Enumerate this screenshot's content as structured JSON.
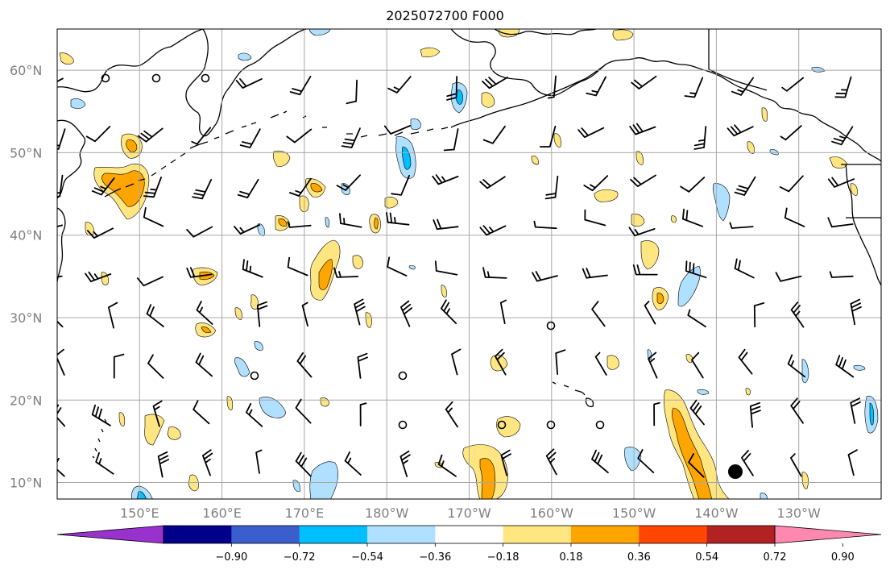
{
  "title": "2025072700 F000",
  "map": {
    "lat_labels": [
      "60°N",
      "50°N",
      "40°N",
      "30°N",
      "20°N",
      "10°N"
    ],
    "lon_labels": [
      "150°E",
      "160°E",
      "170°E",
      "180°W",
      "170°W",
      "160°W",
      "150°W",
      "140°W",
      "130°W"
    ],
    "lat_values": [
      60,
      50,
      40,
      30,
      20,
      10
    ],
    "lon_values": [
      150,
      160,
      170,
      180,
      190,
      200,
      210,
      220,
      230
    ],
    "extent": {
      "lon_min": 140,
      "lon_max": 240,
      "lat_min": 8,
      "lat_max": 65
    }
  },
  "colorbar": {
    "labels": [
      "−0.90",
      "−0.72",
      "−0.54",
      "−0.36",
      "−0.18",
      "0.18",
      "0.36",
      "0.54",
      "0.72",
      "0.90"
    ],
    "colors": [
      "#9932cc",
      "#00008b",
      "#3a5fcd",
      "#00bfff",
      "#b0e0ff",
      "#ffffff",
      "#ffe680",
      "#ffa500",
      "#ff4500",
      "#b22222",
      "#ff88b0"
    ]
  },
  "colors": {
    "pos1": "#ffe680",
    "pos2": "#ffa500",
    "neg1": "#b0e0ff",
    "neg2": "#00bfff",
    "grid": "#a8a8a8",
    "coast": "#000000"
  }
}
